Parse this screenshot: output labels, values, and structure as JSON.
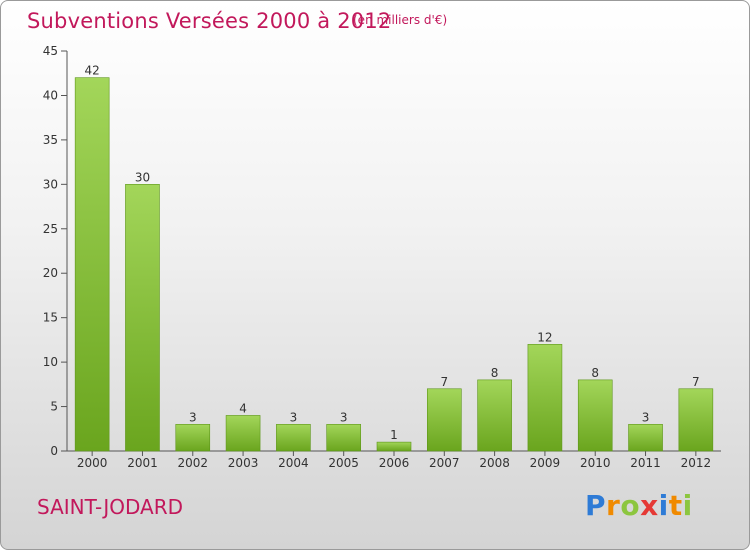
{
  "title": "Subventions Versées 2000 à 2012",
  "subtitle": "(en milliers d'€)",
  "commune": "SAINT-JODARD",
  "logo": {
    "text": "Proxiti",
    "letters": [
      {
        "ch": "P",
        "color": "#2e7bd6"
      },
      {
        "ch": "r",
        "color": "#f08a00"
      },
      {
        "ch": "o",
        "color": "#8cc63f"
      },
      {
        "ch": "x",
        "color": "#e53935"
      },
      {
        "ch": "i",
        "color": "#2e7bd6"
      },
      {
        "ch": "t",
        "color": "#f08a00"
      },
      {
        "ch": "i",
        "color": "#8cc63f"
      }
    ]
  },
  "colors": {
    "accent": "#c2185b",
    "bar_light": "#a3d65a",
    "bar_dark": "#6aa51e",
    "bar_edge": "#5d9619"
  },
  "chart_data": {
    "type": "bar",
    "categories": [
      "2000",
      "2001",
      "2002",
      "2003",
      "2004",
      "2005",
      "2006",
      "2007",
      "2008",
      "2009",
      "2010",
      "2011",
      "2012"
    ],
    "values": [
      42,
      30,
      3,
      4,
      3,
      3,
      1,
      7,
      8,
      12,
      8,
      3,
      7
    ],
    "ylim": [
      0,
      45
    ],
    "yticks": [
      0,
      5,
      10,
      15,
      20,
      25,
      30,
      35,
      40,
      45
    ],
    "xlabel": "",
    "ylabel": "",
    "grid": false,
    "data_labels": true
  }
}
